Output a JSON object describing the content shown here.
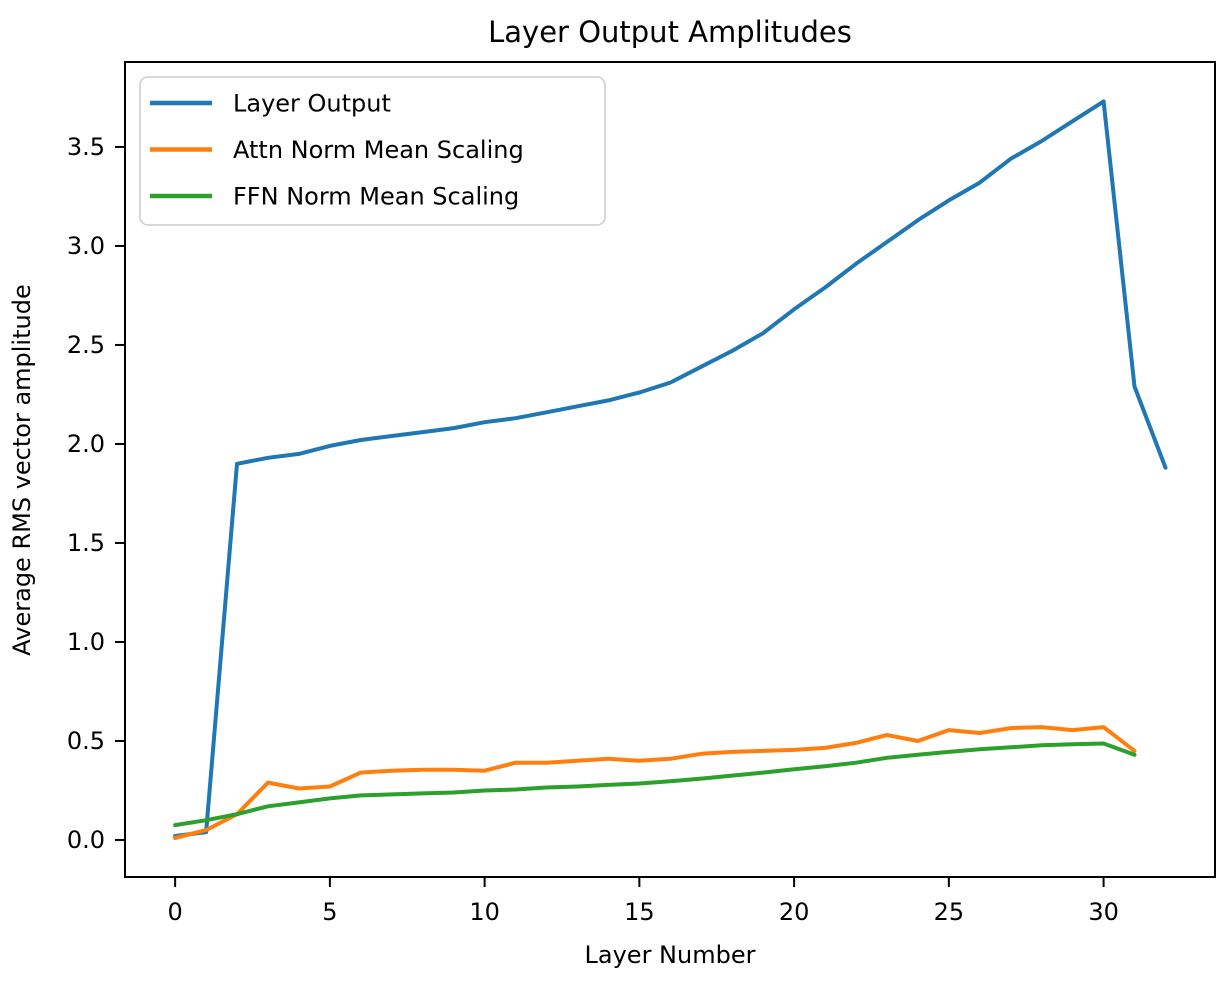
{
  "figure": {
    "background": "#ffffff",
    "plot_area_background": "#ffffff",
    "spine_color": "#000000",
    "legend_border_color": "#cccccc"
  },
  "chart_data": {
    "type": "line",
    "title": "Layer Output Amplitudes",
    "xlabel": "Layer Number",
    "ylabel": "Average RMS vector amplitude",
    "grid": false,
    "legend_position": "upper-left",
    "xlim": [
      -1.62,
      33.6
    ],
    "ylim": [
      -0.187,
      3.929
    ],
    "x_ticks": [
      0,
      5,
      10,
      15,
      20,
      25,
      30
    ],
    "x_tick_labels": [
      "0",
      "5",
      "10",
      "15",
      "20",
      "25",
      "30"
    ],
    "y_ticks": [
      0.0,
      0.5,
      1.0,
      1.5,
      2.0,
      2.5,
      3.0,
      3.5
    ],
    "y_tick_labels": [
      "0.0",
      "0.5",
      "1.0",
      "1.5",
      "2.0",
      "2.5",
      "3.0",
      "3.5"
    ],
    "series": [
      {
        "name": "Layer Output",
        "color": "#1f77b4",
        "x": [
          0,
          1,
          2,
          3,
          4,
          5,
          6,
          7,
          8,
          9,
          10,
          11,
          12,
          13,
          14,
          15,
          16,
          17,
          18,
          19,
          20,
          21,
          22,
          23,
          24,
          25,
          26,
          27,
          28,
          29,
          30,
          31,
          32
        ],
        "values": [
          0.02,
          0.04,
          1.9,
          1.93,
          1.95,
          1.99,
          2.02,
          2.04,
          2.06,
          2.08,
          2.11,
          2.13,
          2.16,
          2.19,
          2.22,
          2.26,
          2.31,
          2.39,
          2.47,
          2.56,
          2.68,
          2.79,
          2.91,
          3.02,
          3.13,
          3.23,
          3.32,
          3.44,
          3.53,
          3.63,
          3.73,
          2.29,
          1.88
        ]
      },
      {
        "name": "Attn Norm Mean Scaling",
        "color": "#ff7f0e",
        "x": [
          0,
          1,
          2,
          3,
          4,
          5,
          6,
          7,
          8,
          9,
          10,
          11,
          12,
          13,
          14,
          15,
          16,
          17,
          18,
          19,
          20,
          21,
          22,
          23,
          24,
          25,
          26,
          27,
          28,
          29,
          30,
          31
        ],
        "values": [
          0.01,
          0.05,
          0.13,
          0.29,
          0.26,
          0.27,
          0.34,
          0.35,
          0.355,
          0.355,
          0.35,
          0.39,
          0.39,
          0.4,
          0.41,
          0.4,
          0.41,
          0.435,
          0.445,
          0.45,
          0.455,
          0.465,
          0.49,
          0.53,
          0.5,
          0.555,
          0.54,
          0.565,
          0.57,
          0.555,
          0.57,
          0.45
        ]
      },
      {
        "name": "FFN Norm Mean Scaling",
        "color": "#2ca02c",
        "x": [
          0,
          1,
          2,
          3,
          4,
          5,
          6,
          7,
          8,
          9,
          10,
          11,
          12,
          13,
          14,
          15,
          16,
          17,
          18,
          19,
          20,
          21,
          22,
          23,
          24,
          25,
          26,
          27,
          28,
          29,
          30,
          31
        ],
        "values": [
          0.075,
          0.1,
          0.13,
          0.17,
          0.19,
          0.21,
          0.225,
          0.23,
          0.235,
          0.24,
          0.25,
          0.255,
          0.265,
          0.27,
          0.278,
          0.285,
          0.297,
          0.31,
          0.325,
          0.34,
          0.357,
          0.372,
          0.39,
          0.415,
          0.43,
          0.445,
          0.458,
          0.468,
          0.478,
          0.483,
          0.487,
          0.43
        ]
      }
    ]
  }
}
